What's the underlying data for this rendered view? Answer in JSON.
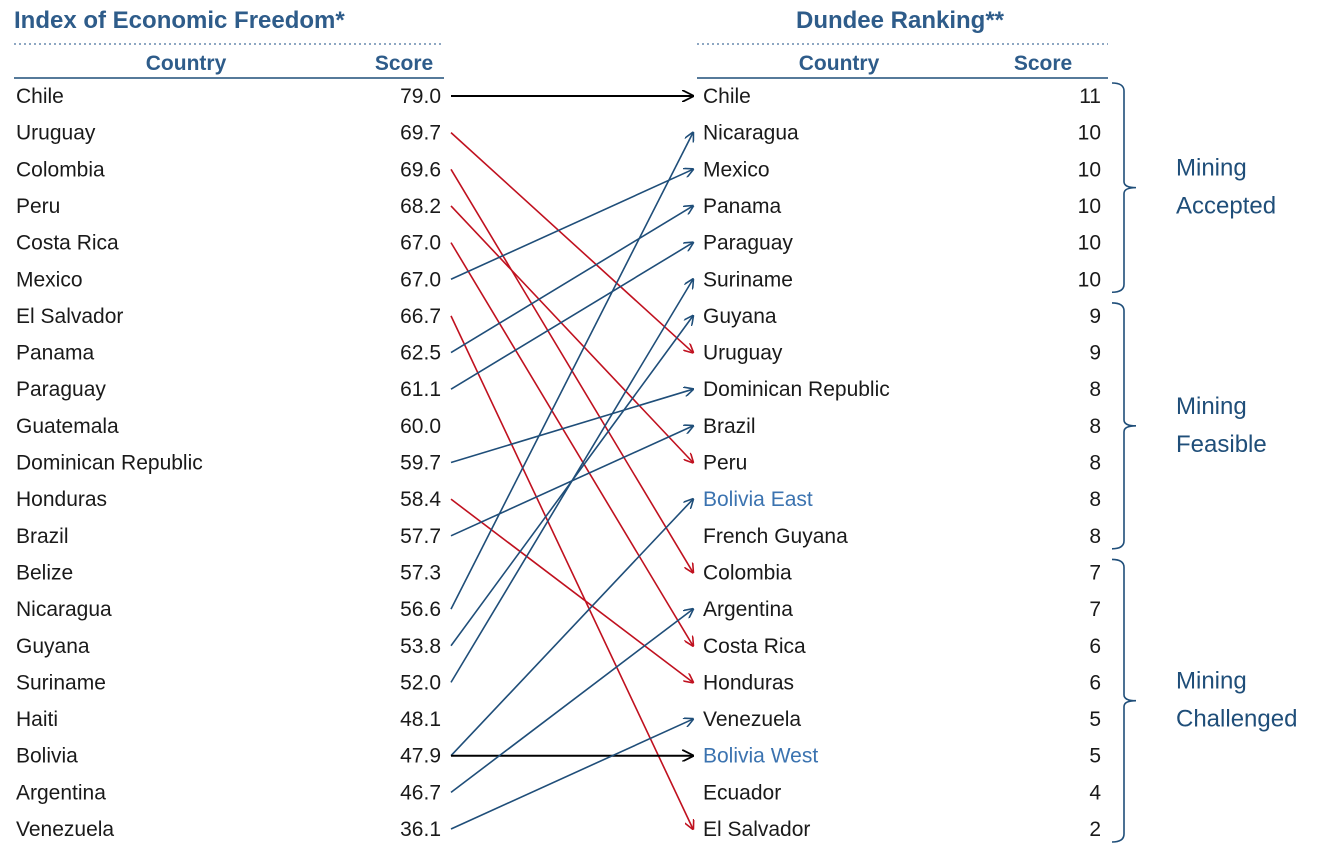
{
  "left": {
    "title": "Index of Economic Freedom*",
    "header_country": "Country",
    "header_score": "Score",
    "rows": [
      {
        "country": "Chile",
        "score": "79.0"
      },
      {
        "country": "Uruguay",
        "score": "69.7"
      },
      {
        "country": "Colombia",
        "score": "69.6"
      },
      {
        "country": "Peru",
        "score": "68.2"
      },
      {
        "country": "Costa Rica",
        "score": "67.0"
      },
      {
        "country": "Mexico",
        "score": "67.0"
      },
      {
        "country": "El Salvador",
        "score": "66.7"
      },
      {
        "country": "Panama",
        "score": "62.5"
      },
      {
        "country": "Paraguay",
        "score": "61.1"
      },
      {
        "country": "Guatemala",
        "score": "60.0"
      },
      {
        "country": "Dominican Republic",
        "score": "59.7"
      },
      {
        "country": "Honduras",
        "score": "58.4"
      },
      {
        "country": "Brazil",
        "score": "57.7"
      },
      {
        "country": "Belize",
        "score": "57.3"
      },
      {
        "country": "Nicaragua",
        "score": "56.6"
      },
      {
        "country": "Guyana",
        "score": "53.8"
      },
      {
        "country": "Suriname",
        "score": "52.0"
      },
      {
        "country": "Haiti",
        "score": "48.1"
      },
      {
        "country": "Bolivia",
        "score": "47.9"
      },
      {
        "country": "Argentina",
        "score": "46.7"
      },
      {
        "country": "Venezuela",
        "score": "36.1"
      }
    ]
  },
  "right": {
    "title": "Dundee Ranking**",
    "header_country": "Country",
    "header_score": "Score",
    "rows": [
      {
        "country": "Chile",
        "score": "11"
      },
      {
        "country": "Nicaragua",
        "score": "10"
      },
      {
        "country": "Mexico",
        "score": "10"
      },
      {
        "country": "Panama",
        "score": "10"
      },
      {
        "country": "Paraguay",
        "score": "10"
      },
      {
        "country": "Suriname",
        "score": "10"
      },
      {
        "country": "Guyana",
        "score": "9"
      },
      {
        "country": "Uruguay",
        "score": "9"
      },
      {
        "country": "Dominican Republic",
        "score": "8"
      },
      {
        "country": "Brazil",
        "score": "8"
      },
      {
        "country": "Peru",
        "score": "8"
      },
      {
        "country": "Bolivia East",
        "score": "8",
        "highlight": true
      },
      {
        "country": "French Guyana",
        "score": "8"
      },
      {
        "country": "Colombia",
        "score": "7"
      },
      {
        "country": "Argentina",
        "score": "7"
      },
      {
        "country": "Costa Rica",
        "score": "6"
      },
      {
        "country": "Honduras",
        "score": "6"
      },
      {
        "country": "Venezuela",
        "score": "5"
      },
      {
        "country": "Bolivia West",
        "score": "5",
        "highlight": true
      },
      {
        "country": "Ecuador",
        "score": "4"
      },
      {
        "country": "El Salvador",
        "score": "2"
      }
    ]
  },
  "groups": [
    {
      "line1": "Mining",
      "line2": "Accepted",
      "from_row": 0,
      "to_row": 5
    },
    {
      "line1": "Mining",
      "line2": "Feasible",
      "from_row": 6,
      "to_row": 12
    },
    {
      "line1": "Mining",
      "line2": "Challenged",
      "from_row": 13,
      "to_row": 20
    }
  ],
  "colors": {
    "title": "#2E5C8A",
    "up_arrow": "#1F4E79",
    "down_arrow": "#C0111F",
    "same_arrow": "#000000",
    "highlight_text": "#3B73B0"
  },
  "arrows": [
    {
      "from": "Chile",
      "to": "Chile",
      "kind": "same"
    },
    {
      "from": "Uruguay",
      "to": "Uruguay",
      "kind": "down"
    },
    {
      "from": "Colombia",
      "to": "Colombia",
      "kind": "down"
    },
    {
      "from": "Peru",
      "to": "Peru",
      "kind": "down"
    },
    {
      "from": "Costa Rica",
      "to": "Costa Rica",
      "kind": "down"
    },
    {
      "from": "Mexico",
      "to": "Mexico",
      "kind": "up"
    },
    {
      "from": "El Salvador",
      "to": "El Salvador",
      "kind": "down"
    },
    {
      "from": "Panama",
      "to": "Panama",
      "kind": "up"
    },
    {
      "from": "Paraguay",
      "to": "Paraguay",
      "kind": "up"
    },
    {
      "from": "Dominican Republic",
      "to": "Dominican Republic",
      "kind": "up"
    },
    {
      "from": "Honduras",
      "to": "Honduras",
      "kind": "down"
    },
    {
      "from": "Brazil",
      "to": "Brazil",
      "kind": "up"
    },
    {
      "from": "Nicaragua",
      "to": "Nicaragua",
      "kind": "up"
    },
    {
      "from": "Guyana",
      "to": "Guyana",
      "kind": "up"
    },
    {
      "from": "Suriname",
      "to": "Suriname",
      "kind": "up"
    },
    {
      "from": "Bolivia",
      "to": "Bolivia East",
      "kind": "up"
    },
    {
      "from": "Bolivia",
      "to": "Bolivia West",
      "kind": "same"
    },
    {
      "from": "Argentina",
      "to": "Argentina",
      "kind": "up"
    },
    {
      "from": "Venezuela",
      "to": "Venezuela",
      "kind": "up"
    }
  ]
}
